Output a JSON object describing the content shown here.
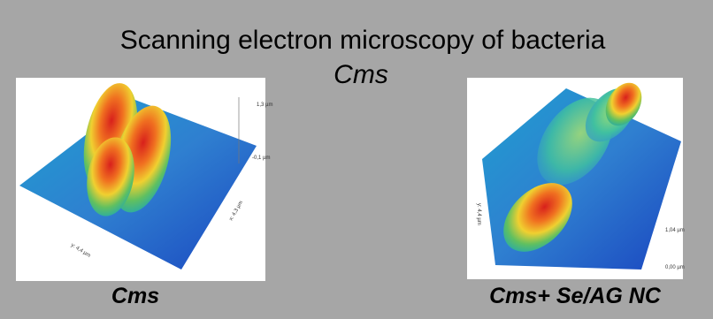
{
  "header": {
    "title": "Scanning electron microscopy of bacteria",
    "subtitle": "Cms"
  },
  "panels": [
    {
      "label": "Cms",
      "axis_labels": [
        "1,3 µm",
        "-0,1 µm",
        "x: 4,3 µm",
        "y: 4,4 µm"
      ]
    },
    {
      "label": "Cms+ Se/AG NC",
      "axis_labels": [
        "y: 4,4 µm",
        "1,04 µm",
        "0,00 µm"
      ]
    }
  ]
}
